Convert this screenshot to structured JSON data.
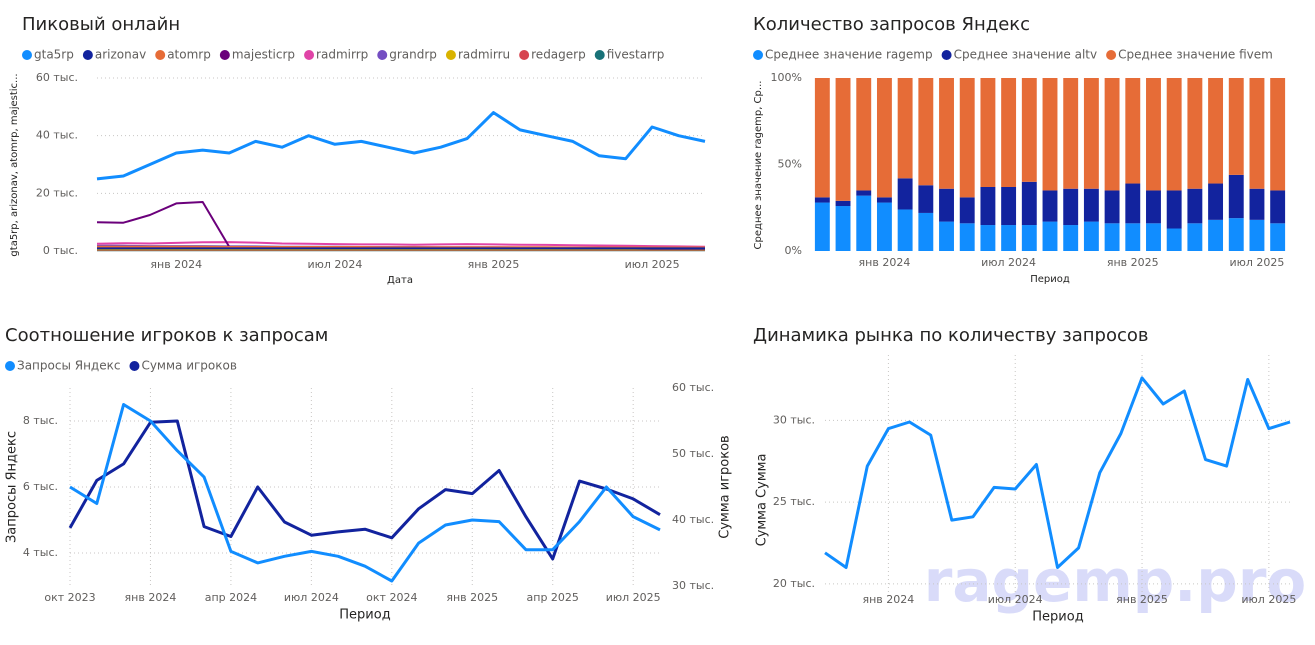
{
  "watermark": "ragemp.pro",
  "chart_data": [
    {
      "type": "line",
      "title": "Пиковый онлайн",
      "y_label": "gta5rp, arizonav, atomrp, majestic...",
      "x_label": "Дата",
      "x": [
        "2023-10",
        "2023-11",
        "2023-12",
        "2024-01",
        "2024-02",
        "2024-03",
        "2024-04",
        "2024-05",
        "2024-06",
        "2024-07",
        "2024-08",
        "2024-09",
        "2024-10",
        "2024-11",
        "2024-12",
        "2025-01",
        "2025-02",
        "2025-03",
        "2025-04",
        "2025-05",
        "2025-06",
        "2025-07",
        "2025-08",
        "2025-09"
      ],
      "xlim": [
        "2023-10",
        "2025-09"
      ],
      "xticks": [
        {
          "value": "2024-01",
          "label": "янв 2024"
        },
        {
          "value": "2024-07",
          "label": "июл 2024"
        },
        {
          "value": "2025-01",
          "label": "янв 2025"
        },
        {
          "value": "2025-07",
          "label": "июл 2025"
        }
      ],
      "ylim": [
        0,
        60000
      ],
      "yticks": [
        {
          "value": 0,
          "label": "0 тыс."
        },
        {
          "value": 20000,
          "label": "20 тыс."
        },
        {
          "value": 40000,
          "label": "40 тыс."
        },
        {
          "value": 60000,
          "label": "60 тыс."
        }
      ],
      "grid": true,
      "legend": "top-left",
      "series": [
        {
          "name": "gta5rp",
          "color": "#118dff",
          "values": [
            25000,
            26000,
            30000,
            34000,
            35000,
            34000,
            38000,
            36000,
            40000,
            37000,
            38000,
            36000,
            34000,
            36000,
            39000,
            48000,
            42000,
            40000,
            38000,
            33000,
            32000,
            43000,
            40000,
            38000
          ]
        },
        {
          "name": "arizonav",
          "color": "#12239e",
          "values": [
            900,
            900,
            900,
            900,
            900,
            900,
            900,
            900,
            900,
            900,
            900,
            900,
            900,
            900,
            900,
            900,
            900,
            900,
            900,
            900,
            900,
            900,
            900,
            900
          ]
        },
        {
          "name": "atomrp",
          "color": "#e66c37",
          "values": [
            1500,
            1500,
            1500,
            1500,
            1500,
            1400,
            1400,
            1400,
            1400,
            1400,
            1400,
            1300,
            1300,
            1300,
            1300,
            1300,
            1300,
            1300,
            1200,
            1200,
            1200,
            1200,
            1200,
            1200
          ]
        },
        {
          "name": "majesticrp",
          "color": "#6b007b",
          "values": [
            10000,
            9800,
            12500,
            16500,
            17000,
            1500,
            1400,
            1300,
            1300,
            1200,
            1200,
            1200,
            1100,
            1100,
            1100,
            1000,
            1000,
            1000,
            900,
            900,
            900,
            800,
            800,
            800
          ]
        },
        {
          "name": "radmirrp",
          "color": "#e044a7",
          "values": [
            2500,
            2700,
            2600,
            2800,
            3000,
            3100,
            2900,
            2600,
            2500,
            2400,
            2300,
            2300,
            2200,
            2300,
            2400,
            2300,
            2200,
            2100,
            2000,
            1900,
            1800,
            1700,
            1600,
            1500
          ]
        },
        {
          "name": "grandrp",
          "color": "#744ec2",
          "values": [
            1800,
            1800,
            1700,
            1700,
            1700,
            1600,
            1600,
            1500,
            1500,
            1500,
            1400,
            1400,
            1400,
            1300,
            1300,
            1300,
            1200,
            1200,
            1200,
            1100,
            1100,
            1100,
            1000,
            1000
          ]
        },
        {
          "name": "radmirru",
          "color": "#d9b300",
          "values": [
            600,
            600,
            600,
            600,
            600,
            600,
            600,
            600,
            600,
            600,
            600,
            600,
            600,
            600,
            600,
            600,
            600,
            600,
            600,
            600,
            600,
            600,
            600,
            600
          ]
        },
        {
          "name": "redagerp",
          "color": "#d64550",
          "values": [
            400,
            400,
            400,
            400,
            400,
            400,
            400,
            400,
            400,
            400,
            400,
            400,
            400,
            400,
            400,
            400,
            400,
            400,
            400,
            400,
            400,
            400,
            400,
            400
          ]
        },
        {
          "name": "fivestarrp",
          "color": "#197278",
          "values": [
            300,
            300,
            300,
            300,
            300,
            300,
            300,
            300,
            300,
            300,
            300,
            300,
            300,
            300,
            300,
            300,
            300,
            300,
            300,
            300,
            300,
            300,
            300,
            300
          ]
        }
      ]
    },
    {
      "type": "stacked_bar_100",
      "title": "Количество запросов Яндекс",
      "y_label": "Среднее значение ragemp, Ср...",
      "x_label": "Период",
      "x": [
        "2023-10",
        "2023-11",
        "2023-12",
        "2024-01",
        "2024-02",
        "2024-03",
        "2024-04",
        "2024-05",
        "2024-06",
        "2024-07",
        "2024-08",
        "2024-09",
        "2024-10",
        "2024-11",
        "2024-12",
        "2025-01",
        "2025-02",
        "2025-03",
        "2025-04",
        "2025-05",
        "2025-06",
        "2025-07",
        "2025-08"
      ],
      "xticks": [
        {
          "value": "2024-01",
          "label": "янв 2024"
        },
        {
          "value": "2024-07",
          "label": "июл 2024"
        },
        {
          "value": "2025-01",
          "label": "янв 2025"
        },
        {
          "value": "2025-07",
          "label": "июл 2025"
        }
      ],
      "ylim": [
        0,
        100
      ],
      "yticks": [
        {
          "value": 0,
          "label": "0%"
        },
        {
          "value": 50,
          "label": "50%"
        },
        {
          "value": 100,
          "label": "100%"
        }
      ],
      "grid": false,
      "legend": "top-left",
      "series": [
        {
          "name": "Среднее значение ragemp",
          "color": "#118dff",
          "values": [
            28,
            26,
            32,
            28,
            24,
            22,
            17,
            16,
            15,
            15,
            15,
            17,
            15,
            17,
            16,
            16,
            16,
            13,
            16,
            18,
            19,
            18,
            16
          ]
        },
        {
          "name": "Среднее значение altv",
          "color": "#12239e",
          "values": [
            3,
            3,
            3,
            3,
            18,
            16,
            19,
            15,
            22,
            22,
            25,
            18,
            21,
            19,
            19,
            23,
            19,
            22,
            20,
            21,
            25,
            18,
            19
          ]
        },
        {
          "name": "Среднее значение fivem",
          "color": "#e66c37",
          "values": [
            69,
            71,
            65,
            69,
            58,
            62,
            64,
            69,
            63,
            63,
            60,
            65,
            64,
            64,
            65,
            61,
            65,
            65,
            64,
            61,
            56,
            64,
            65
          ]
        }
      ]
    },
    {
      "type": "line",
      "title": "Соотношение игроков к запросам",
      "y_label": "Запросы Яндекс",
      "y2_label": "Сумма игроков",
      "x_label": "Период",
      "x": [
        "2023-10",
        "2023-11",
        "2023-12",
        "2024-01",
        "2024-02",
        "2024-03",
        "2024-04",
        "2024-05",
        "2024-06",
        "2024-07",
        "2024-08",
        "2024-09",
        "2024-10",
        "2024-11",
        "2024-12",
        "2025-01",
        "2025-02",
        "2025-03",
        "2025-04",
        "2025-05",
        "2025-06",
        "2025-07",
        "2025-08"
      ],
      "xlim": [
        "2023-10",
        "2025-08"
      ],
      "xticks": [
        {
          "value": "2023-10",
          "label": "окт 2023"
        },
        {
          "value": "2024-01",
          "label": "янв 2024"
        },
        {
          "value": "2024-04",
          "label": "апр 2024"
        },
        {
          "value": "2024-07",
          "label": "июл 2024"
        },
        {
          "value": "2024-10",
          "label": "окт 2024"
        },
        {
          "value": "2025-01",
          "label": "янв 2025"
        },
        {
          "value": "2025-04",
          "label": "апр 2025"
        },
        {
          "value": "2025-07",
          "label": "июл 2025"
        }
      ],
      "ylim": [
        3000,
        9000
      ],
      "yticks": [
        {
          "value": 4000,
          "label": "4 тыс."
        },
        {
          "value": 6000,
          "label": "6 тыс."
        },
        {
          "value": 8000,
          "label": "8 тыс."
        }
      ],
      "y2lim": [
        30000,
        60000
      ],
      "y2ticks": [
        {
          "value": 30000,
          "label": "30 тыс."
        },
        {
          "value": 40000,
          "label": "40 тыс."
        },
        {
          "value": 50000,
          "label": "50 тыс."
        },
        {
          "value": 60000,
          "label": "60 тыс."
        }
      ],
      "grid": true,
      "legend": "top-left",
      "series": [
        {
          "name": "Запросы Яндекс",
          "color": "#118dff",
          "values": [
            6000,
            5500,
            8500,
            8000,
            7100,
            6300,
            4050,
            3700,
            3900,
            4050,
            3900,
            3600,
            3150,
            4300,
            4850,
            5000,
            4950,
            4100,
            4100,
            4950,
            6000,
            5100,
            4700
          ]
        },
        {
          "name": "Сумма игроков",
          "color": "#12239e",
          "axis": "y2",
          "values": [
            38800,
            46000,
            48500,
            54800,
            55000,
            39000,
            37500,
            45000,
            39700,
            37700,
            38200,
            38600,
            37300,
            41700,
            44600,
            44000,
            47500,
            40500,
            34100,
            45900,
            44700,
            43200,
            40800
          ]
        }
      ]
    },
    {
      "type": "line",
      "title": "Динамика рынка по количеству запросов",
      "y_label": "Сумма Сумма",
      "x_label": "Период",
      "x": [
        "2023-10",
        "2023-11",
        "2023-12",
        "2024-01",
        "2024-02",
        "2024-03",
        "2024-04",
        "2024-05",
        "2024-06",
        "2024-07",
        "2024-08",
        "2024-09",
        "2024-10",
        "2024-11",
        "2024-12",
        "2025-01",
        "2025-02",
        "2025-03",
        "2025-04",
        "2025-05",
        "2025-06",
        "2025-07",
        "2025-08"
      ],
      "xlim": [
        "2023-10",
        "2025-08"
      ],
      "xticks": [
        {
          "value": "2024-01",
          "label": "янв 2024"
        },
        {
          "value": "2024-07",
          "label": "июл 2024"
        },
        {
          "value": "2025-01",
          "label": "янв 2025"
        },
        {
          "value": "2025-07",
          "label": "июл 2025"
        }
      ],
      "ylim": [
        19500,
        34000
      ],
      "yticks": [
        {
          "value": 20000,
          "label": "20 тыс."
        },
        {
          "value": 25000,
          "label": "25 тыс."
        },
        {
          "value": 30000,
          "label": "30 тыс."
        }
      ],
      "grid": true,
      "series": [
        {
          "name": "Сумма",
          "color": "#118dff",
          "values": [
            21900,
            21000,
            27200,
            29500,
            29900,
            29100,
            23900,
            24100,
            25900,
            25800,
            27300,
            21000,
            22200,
            26800,
            29200,
            32600,
            31000,
            31800,
            27600,
            27200,
            32500,
            29500,
            29900
          ]
        }
      ]
    }
  ]
}
